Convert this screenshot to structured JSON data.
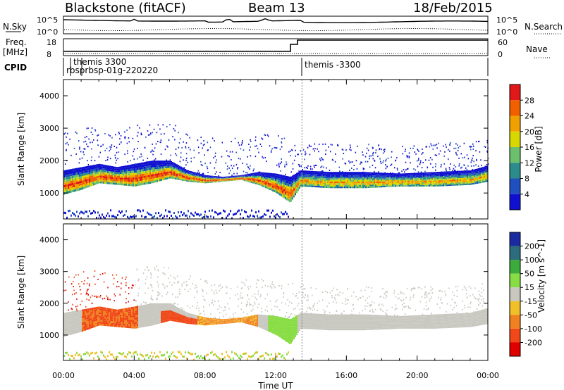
{
  "header": {
    "title": "Blackstone (fitACF)",
    "beam": "Beam 13",
    "date": "18/Feb/2015"
  },
  "aux": {
    "nsky_label": "N.Sky",
    "nsearch_label": "N.Search",
    "freq_label_1": "Freq.",
    "freq_label_2": "[MHz]",
    "nave_label": "Nave",
    "cpid_label": "CPID",
    "noise_ticks": [
      "10^5",
      "10^0"
    ],
    "freq_ticks": [
      "18",
      "8"
    ],
    "nave_ticks": [
      "60",
      "0"
    ],
    "cpid_entries": [
      "themis 3300",
      "rbsprbsp-01g-220220",
      "themis -3300"
    ]
  },
  "chart_data": [
    {
      "type": "heatmap",
      "name": "power-panel",
      "xlabel": "Time UT",
      "ylabel": "Slant Range [km]",
      "x_ticks": [
        "00:00",
        "04:00",
        "08:00",
        "12:00",
        "16:00",
        "20:00",
        "00:00"
      ],
      "y_ticks": [
        "1000",
        "2000",
        "3000",
        "4000"
      ],
      "ylim": [
        200,
        4500
      ],
      "colorbar": {
        "label": "Power [dB]",
        "ticks": [
          "4",
          "8",
          "12",
          "16",
          "20",
          "24",
          "28"
        ],
        "colors": [
          "#1010d0",
          "#2050c0",
          "#2c8c8c",
          "#6cbf6c",
          "#d8d800",
          "#f0a000",
          "#f06000",
          "#e01818"
        ]
      },
      "bands": [
        {
          "x": [
            0.0,
            1.0,
            2.0,
            3.0,
            4.0,
            5.0,
            6.0,
            7.0,
            8.0,
            9.0,
            10.0,
            11.0,
            12.0,
            12.8,
            13.4,
            15.0,
            17.0,
            19.0,
            21.0,
            23.0,
            24.0
          ],
          "low": [
            950,
            1100,
            1300,
            1250,
            1200,
            1300,
            1450,
            1350,
            1300,
            1350,
            1400,
            1250,
            1000,
            700,
            1200,
            1150,
            1150,
            1200,
            1200,
            1250,
            1350
          ],
          "high": [
            1700,
            1800,
            1900,
            1800,
            1900,
            2000,
            2000,
            1700,
            1550,
            1500,
            1550,
            1650,
            1600,
            1500,
            1700,
            1650,
            1650,
            1600,
            1650,
            1700,
            1850
          ]
        }
      ]
    },
    {
      "type": "heatmap",
      "name": "velocity-panel",
      "xlabel": "Time UT",
      "ylabel": "Slant Range [km]",
      "x_ticks": [
        "00:00",
        "04:00",
        "08:00",
        "12:00",
        "16:00",
        "20:00",
        "00:00"
      ],
      "y_ticks": [
        "1000",
        "2000",
        "3000",
        "4000"
      ],
      "ylim": [
        200,
        4500
      ],
      "colorbar": {
        "label": "Velocity [m s^-1]",
        "ticks": [
          "200",
          "100",
          "50",
          "15",
          "-15",
          "-50",
          "-100",
          "-200"
        ],
        "colors": [
          "#1a2aa0",
          "#2c6c7c",
          "#3cab3c",
          "#88dc44",
          "#c8c8c0",
          "#f0c028",
          "#f08020",
          "#f04818",
          "#e00000"
        ]
      },
      "bands": [
        {
          "x": [
            0.0,
            1.0,
            2.0,
            3.0,
            4.0,
            5.0,
            6.0,
            7.0,
            8.0,
            9.0,
            10.0,
            11.0,
            12.0,
            12.8,
            13.4,
            15.0,
            17.0,
            19.0,
            21.0,
            23.0,
            24.0
          ],
          "low": [
            950,
            1100,
            1300,
            1250,
            1200,
            1300,
            1450,
            1350,
            1300,
            1350,
            1400,
            1250,
            1000,
            700,
            1200,
            1150,
            1150,
            1200,
            1200,
            1250,
            1350
          ],
          "high": [
            1700,
            1800,
            1900,
            1800,
            1900,
            2000,
            2000,
            1700,
            1550,
            1500,
            1550,
            1650,
            1600,
            1500,
            1700,
            1650,
            1650,
            1600,
            1650,
            1700,
            1850
          ]
        }
      ]
    }
  ]
}
